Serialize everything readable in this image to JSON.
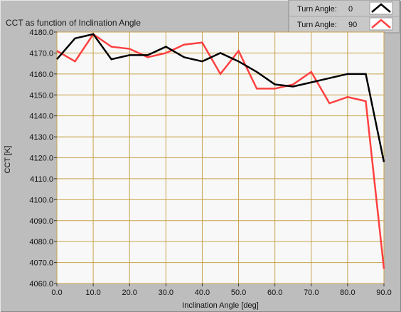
{
  "chart_data": {
    "type": "line",
    "title": "CCT as function of Inclination Angle",
    "xlabel": "Inclination Angle [deg]",
    "ylabel": "CCT [K]",
    "xlim": [
      0,
      90
    ],
    "ylim": [
      4060,
      4180
    ],
    "x_ticks": [
      "0.0",
      "10.0",
      "20.0",
      "30.0",
      "40.0",
      "50.0",
      "60.0",
      "70.0",
      "80.0",
      "90.0"
    ],
    "y_ticks": [
      "4060.0",
      "4070.0",
      "4080.0",
      "4090.0",
      "4100.0",
      "4110.0",
      "4120.0",
      "4130.0",
      "4140.0",
      "4150.0",
      "4160.0",
      "4170.0",
      "4180.0"
    ],
    "grid": true,
    "legend_position": "top-right",
    "legend_label": "Turn Angle:",
    "x": [
      0,
      5,
      10,
      15,
      20,
      25,
      30,
      35,
      40,
      45,
      50,
      55,
      60,
      65,
      70,
      75,
      80,
      85,
      90
    ],
    "series": [
      {
        "turn_angle": "0",
        "color": "#000000",
        "values": [
          4167,
          4177,
          4179,
          4167,
          4169,
          4169,
          4173,
          4168,
          4166,
          4170,
          4166,
          4161,
          4155,
          4154,
          4156,
          4158,
          4160,
          4160,
          4118
        ]
      },
      {
        "turn_angle": "90",
        "color": "#ff4040",
        "values": [
          4171,
          4166,
          4179,
          4173,
          4172,
          4168,
          4170,
          4174,
          4175,
          4160,
          4171,
          4153,
          4153,
          4155,
          4161,
          4146,
          4149,
          4147,
          4067
        ]
      }
    ]
  }
}
